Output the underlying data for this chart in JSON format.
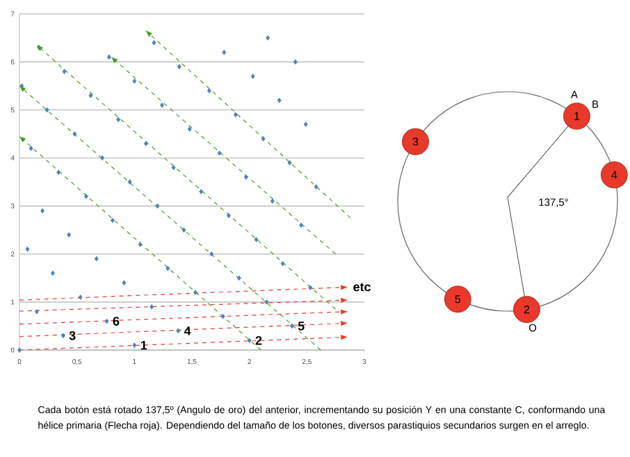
{
  "chart_data": [
    {
      "type": "scatter",
      "xlim": [
        0,
        3
      ],
      "ylim": [
        0,
        7
      ],
      "xticks": [
        {
          "value": 0,
          "label": "0"
        },
        {
          "value": 0.5,
          "label": "0,5"
        },
        {
          "value": 1,
          "label": "1"
        },
        {
          "value": 1.5,
          "label": "1,5"
        },
        {
          "value": 2,
          "label": "2"
        },
        {
          "value": 2.5,
          "label": "2,5"
        },
        {
          "value": 3,
          "label": "3"
        }
      ],
      "yticks": [
        0,
        1,
        2,
        3,
        4,
        5,
        6,
        7
      ],
      "grid": "y",
      "series": [
        {
          "type": "scatter",
          "marker": "diamond",
          "color": "#4f81bd",
          "x": [
            0,
            1.0,
            2.0,
            0.38,
            1.38,
            2.37,
            0.76,
            1.77,
            0.15,
            1.15,
            2.15,
            0.53,
            1.53,
            2.53,
            0.91,
            1.91,
            0.29,
            1.29,
            2.29,
            0.67,
            1.67,
            0.07,
            1.05,
            2.06,
            0.43,
            1.43,
            2.45,
            0.81,
            1.82,
            0.2,
            1.2,
            2.2,
            0.58,
            1.58,
            2.58,
            0.96,
            1.97,
            0.34,
            1.34,
            2.35,
            0.72,
            1.74,
            0.1,
            1.1,
            2.12,
            0.48,
            1.48,
            2.49,
            0.86,
            1.88,
            0.24,
            1.24,
            2.26,
            0.62,
            1.65,
            0.02,
            1.0,
            2.03,
            0.39,
            1.39,
            2.4,
            0.78,
            1.78,
            0.17,
            1.17,
            2.16
          ],
          "values": [
            0,
            0.1,
            0.2,
            0.3,
            0.4,
            0.5,
            0.6,
            0.7,
            0.8,
            0.9,
            1.0,
            1.1,
            1.2,
            1.3,
            1.4,
            1.5,
            1.6,
            1.7,
            1.8,
            1.9,
            2.0,
            2.1,
            2.2,
            2.3,
            2.4,
            2.5,
            2.6,
            2.7,
            2.8,
            2.9,
            3.0,
            3.1,
            3.2,
            3.3,
            3.4,
            3.5,
            3.6,
            3.7,
            3.8,
            3.9,
            4.0,
            4.1,
            4.2,
            4.3,
            4.4,
            4.5,
            4.6,
            4.7,
            4.8,
            4.9,
            5.0,
            5.1,
            5.2,
            5.3,
            5.4,
            5.5,
            5.6,
            5.7,
            5.8,
            5.9,
            6.0,
            6.1,
            6.2,
            6.3,
            6.4,
            6.5
          ]
        },
        {
          "type": "line",
          "color": "#4c9a2a",
          "line_style": "dashed",
          "x": [
            2.1,
            0
          ],
          "values": [
            0,
            4.45
          ]
        },
        {
          "type": "line",
          "color": "#4c9a2a",
          "line_style": "dashed",
          "x": [
            2.62,
            0
          ],
          "values": [
            0,
            5.5
          ]
        },
        {
          "type": "line",
          "color": "#4c9a2a",
          "line_style": "dashed",
          "x": [
            2.75,
            0.15
          ],
          "values": [
            0.85,
            6.35
          ]
        },
        {
          "type": "line",
          "color": "#4c9a2a",
          "line_style": "dashed",
          "x": [
            2.75,
            0.8
          ],
          "values": [
            2.0,
            6.1
          ]
        },
        {
          "type": "line",
          "color": "#4c9a2a",
          "line_style": "dashed",
          "x": [
            2.88,
            1.1
          ],
          "values": [
            2.75,
            6.65
          ]
        },
        {
          "type": "line",
          "color": "#e03c31",
          "line_style": "dashed",
          "x": [
            0,
            2.85
          ],
          "values": [
            0,
            0.27
          ]
        },
        {
          "type": "line",
          "color": "#e03c31",
          "line_style": "dashed",
          "x": [
            0,
            2.85
          ],
          "values": [
            0.28,
            0.56
          ]
        },
        {
          "type": "line",
          "color": "#e03c31",
          "line_style": "dashed",
          "x": [
            0,
            2.85
          ],
          "values": [
            0.54,
            0.8
          ]
        },
        {
          "type": "line",
          "color": "#e03c31",
          "line_style": "dashed",
          "x": [
            0,
            2.85
          ],
          "values": [
            0.81,
            1.04
          ]
        },
        {
          "type": "line",
          "color": "#e03c31",
          "line_style": "dashed",
          "x": [
            0,
            2.85
          ],
          "values": [
            1.04,
            1.31
          ]
        }
      ],
      "annotations": [
        {
          "text": "1",
          "x": 1.0,
          "y": 0.1
        },
        {
          "text": "2",
          "x": 2.0,
          "y": 0.2
        },
        {
          "text": "3",
          "x": 0.38,
          "y": 0.3
        },
        {
          "text": "4",
          "x": 1.38,
          "y": 0.4
        },
        {
          "text": "5",
          "x": 2.37,
          "y": 0.5
        },
        {
          "text": "6",
          "x": 0.76,
          "y": 0.6
        },
        {
          "text": "etc",
          "x": 2.85,
          "y": 1.31
        },
        "Cada botón  está rotado 137,5º (Angulo de oro) del anterior, incrementando su posición Y en una constante C, conformando una hélice primaria (Flecha roja). Dependiendo del tamaño de los botones,  diversos parastiquios secundarios surgen en el arreglo."
      ]
    },
    {
      "type": "other",
      "annotations": [
        "1",
        "2",
        "3",
        "4",
        "5",
        "A",
        "B",
        "O",
        "137,5°"
      ]
    }
  ]
}
